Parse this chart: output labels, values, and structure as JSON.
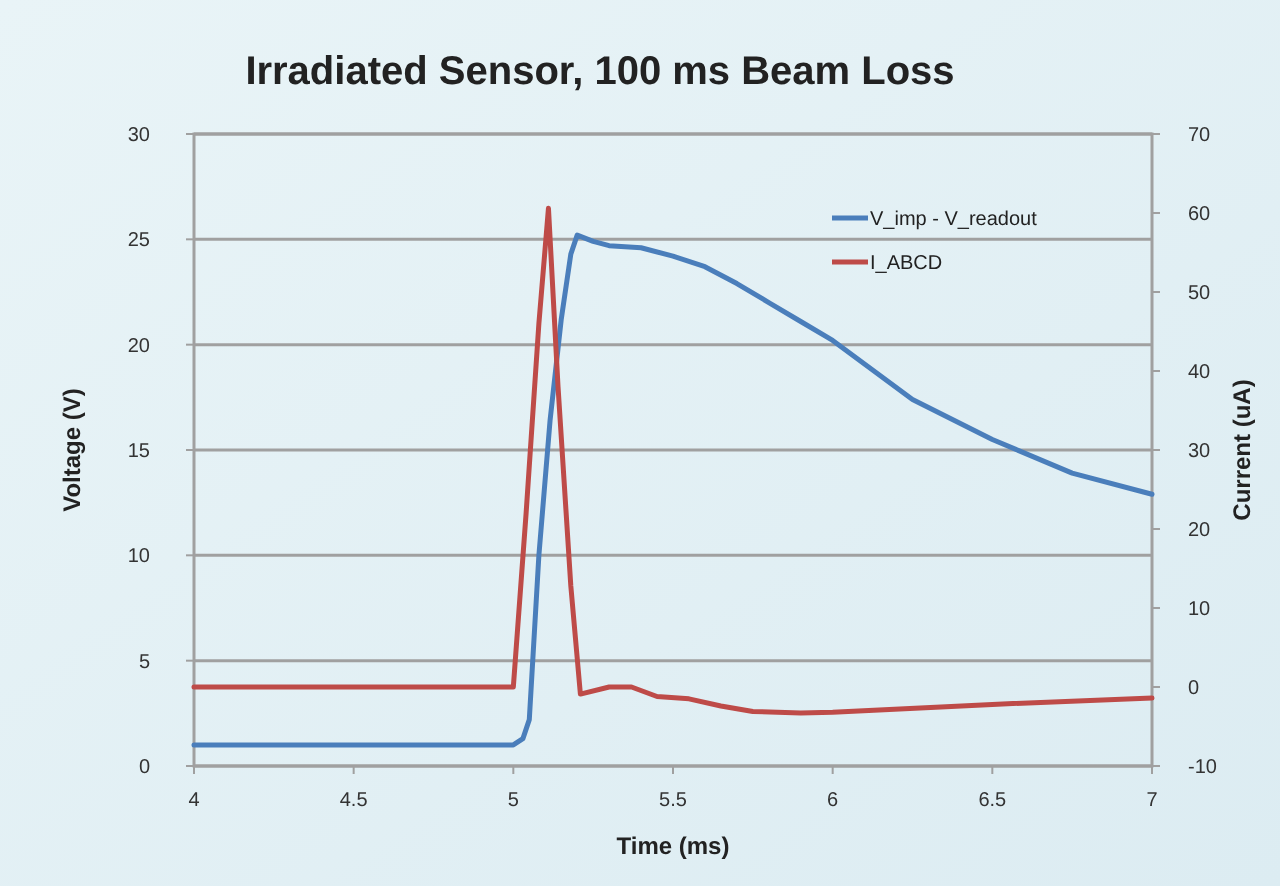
{
  "chart_data": {
    "type": "line",
    "title": "Irradiated Sensor, 100 ms Beam Loss",
    "xlabel": "Time (ms)",
    "ylabel": "Voltage (V)",
    "y2label": "Current (uA)",
    "xlim": [
      4,
      7
    ],
    "xticks": [
      4,
      4.5,
      5,
      5.5,
      6,
      6.5,
      7
    ],
    "ylim": [
      0,
      30
    ],
    "yticks": [
      0,
      5,
      10,
      15,
      20,
      25,
      30
    ],
    "y2lim": [
      -10,
      70
    ],
    "y2ticks": [
      -10,
      0,
      10,
      20,
      30,
      40,
      50,
      60,
      70
    ],
    "grid": "y",
    "legend": "top right",
    "marker": "none",
    "line_style": "solid",
    "series": [
      {
        "name": "V_imp - V_readout",
        "color": "#4a7ebb",
        "x": [
          4,
          4.5,
          5,
          5.03,
          5.05,
          5.08,
          5.115,
          5.15,
          5.18,
          5.2,
          5.25,
          5.3,
          5.4,
          5.5,
          5.6,
          5.7,
          5.8,
          5.9,
          6,
          6.25,
          6.5,
          6.75,
          7
        ],
        "values": [
          1,
          1,
          1,
          1.3,
          2.2,
          10,
          16.4,
          21.2,
          24.3,
          25.2,
          24.9,
          24.7,
          24.6,
          24.2,
          23.7,
          22.9,
          22,
          21.1,
          20.2,
          17.4,
          15.5,
          13.9,
          12.9
        ]
      },
      {
        "name": "I_ABCD",
        "color": "#be4b48",
        "axis": "y2",
        "x": [
          4,
          4.5,
          5,
          5.04,
          5.08,
          5.11,
          5.14,
          5.18,
          5.21,
          5.3,
          5.37,
          5.45,
          5.55,
          5.65,
          5.75,
          5.9,
          6,
          6.5,
          7
        ],
        "values": [
          0,
          0,
          0,
          22,
          46,
          60.6,
          38,
          12.8,
          -0.9,
          0,
          0,
          -1.2,
          -1.5,
          -2.4,
          -3.1,
          -3.3,
          -3.2,
          -2.2,
          -1.4
        ]
      }
    ]
  }
}
